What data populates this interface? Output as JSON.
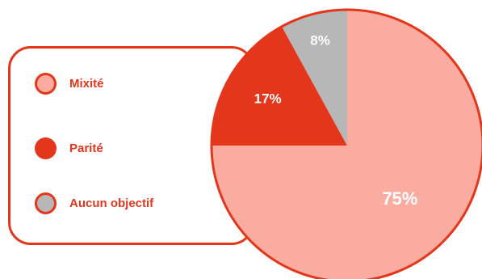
{
  "chart_data": {
    "type": "pie",
    "slices": [
      {
        "label": "Mixité",
        "value": 75,
        "display": "75%",
        "color": "#fbaca0"
      },
      {
        "label": "Parité",
        "value": 17,
        "display": "17%",
        "color": "#e3361b"
      },
      {
        "label": "Aucun objectif",
        "value": 8,
        "display": "8%",
        "color": "#b7b7b7"
      }
    ],
    "edge_color": "#e3361b",
    "legend_placement": "left"
  }
}
